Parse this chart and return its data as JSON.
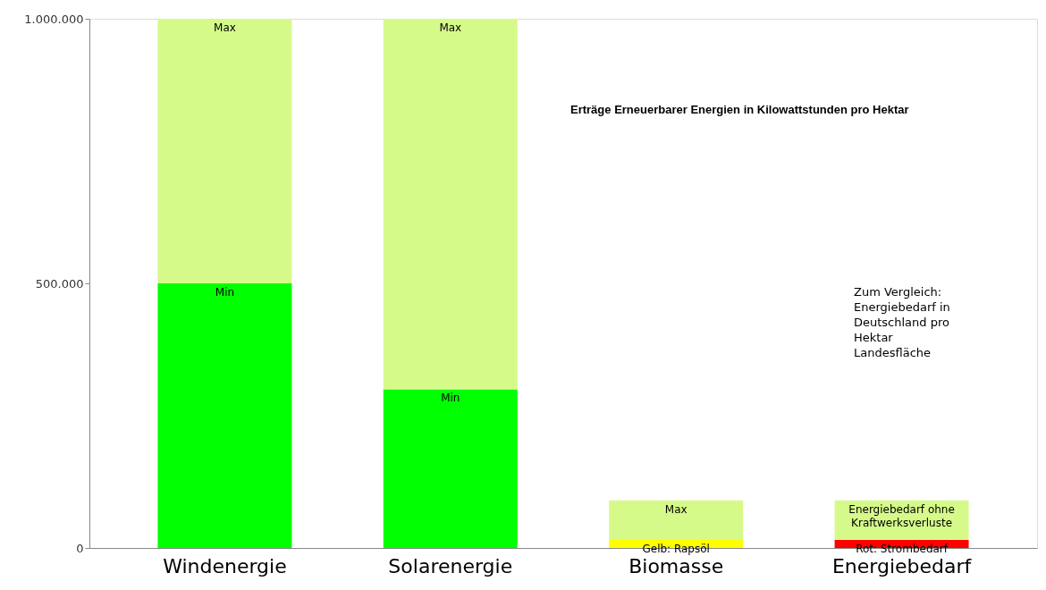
{
  "chart_data": {
    "type": "bar",
    "stacked": true,
    "title": "Erträge Erneuerbarer Energien in Kilowattstunden pro Hektar",
    "categories": [
      "Windenergie",
      "Solarenergie",
      "Biomasse",
      "Energiebedarf"
    ],
    "series": [
      {
        "colors": [
          "#00ff00",
          "#00ff00",
          "#ffff00",
          "#ff0000"
        ],
        "values": [
          500000,
          300000,
          15000,
          15000
        ]
      },
      {
        "color": "#d6fa8a",
        "values": [
          500000,
          700000,
          75000,
          75000
        ]
      }
    ],
    "ylim": [
      0,
      1000000
    ],
    "yticks": [
      {
        "value": 0,
        "label": "0"
      },
      {
        "value": 500000,
        "label": "500.000"
      },
      {
        "value": 1000000,
        "label": "1.000.000"
      }
    ],
    "grid": false,
    "annotations": [
      {
        "text": "Max",
        "x": "Windenergie",
        "y": 1000000
      },
      {
        "text": "Min",
        "x": "Windenergie",
        "y": 500000
      },
      {
        "text": "Max",
        "x": "Solarenergie",
        "y": 1000000
      },
      {
        "text": "Min",
        "x": "Solarenergie",
        "y": 300000
      },
      {
        "text": "Max",
        "x": "Biomasse",
        "y": 90000
      },
      {
        "text": "Gelb: Rapsöl",
        "x": "Biomasse",
        "y": 15000
      },
      {
        "text": "Energiebedarf ohne\nKraftwerksverluste",
        "x": "Energiebedarf",
        "y": 90000
      },
      {
        "text": "Rot: Strombedarf",
        "x": "Energiebedarf",
        "y": 15000
      },
      "Zum Vergleich:\nEnergiebedarf in\nDeutschland pro\nHektar\nLandesfläche"
    ]
  }
}
